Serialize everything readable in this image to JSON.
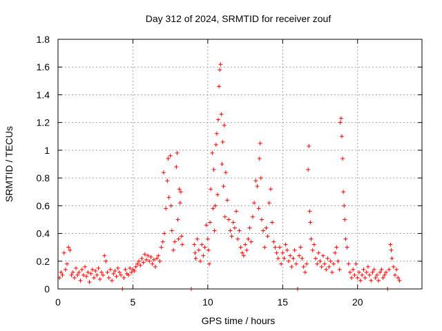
{
  "chart_data": {
    "type": "scatter",
    "title": "Day 312 of 2024, SRMTID for receiver zouf",
    "xlabel": "GPS time / hours",
    "ylabel": "SRMTID / TECUs",
    "xlim": [
      0,
      24.3
    ],
    "ylim": [
      0,
      1.8
    ],
    "xticks": [
      0,
      5,
      10,
      15,
      20
    ],
    "xtick_labels": [
      "0",
      "5",
      "10",
      "15",
      "20"
    ],
    "yticks": [
      0,
      0.2,
      0.4,
      0.6,
      0.8,
      1.0,
      1.2,
      1.4,
      1.6,
      1.8
    ],
    "ytick_labels": [
      "0",
      "0.2",
      "0.4",
      "0.6",
      "0.8",
      "1",
      "1.2",
      "1.4",
      "1.6",
      "1.8"
    ],
    "grid": true,
    "marker": "+",
    "color": "#ff0000",
    "series": [
      {
        "name": "SRMTID",
        "points": [
          [
            0.1,
            0.08
          ],
          [
            0.2,
            0.12
          ],
          [
            0.3,
            0.1
          ],
          [
            0.4,
            0.26
          ],
          [
            0.5,
            0.14
          ],
          [
            0.6,
            0.18
          ],
          [
            0.7,
            0.3
          ],
          [
            0.8,
            0.28
          ],
          [
            0.9,
            0.1
          ],
          [
            1.0,
            0.12
          ],
          [
            1.1,
            0.08
          ],
          [
            1.2,
            0.15
          ],
          [
            1.3,
            0.1
          ],
          [
            1.4,
            0.12
          ],
          [
            1.5,
            0.06
          ],
          [
            1.6,
            0.14
          ],
          [
            1.7,
            0.1
          ],
          [
            1.8,
            0.16
          ],
          [
            1.9,
            0.09
          ],
          [
            2.0,
            0.12
          ],
          [
            2.1,
            0.05
          ],
          [
            2.2,
            0.11
          ],
          [
            2.3,
            0.14
          ],
          [
            2.4,
            0.08
          ],
          [
            2.5,
            0.13
          ],
          [
            2.6,
            0.1
          ],
          [
            2.7,
            0.15
          ],
          [
            2.8,
            0.07
          ],
          [
            2.9,
            0.12
          ],
          [
            3.0,
            0.1
          ],
          [
            3.1,
            0.24
          ],
          [
            3.2,
            0.2
          ],
          [
            3.3,
            0.12
          ],
          [
            3.4,
            0.08
          ],
          [
            3.5,
            0.14
          ],
          [
            3.6,
            0.06
          ],
          [
            3.7,
            0.11
          ],
          [
            3.8,
            0.13
          ],
          [
            3.9,
            0.09
          ],
          [
            4.0,
            0.15
          ],
          [
            4.1,
            0.12
          ],
          [
            4.2,
            0.1
          ],
          [
            4.3,
            0.0
          ],
          [
            4.4,
            0.08
          ],
          [
            4.5,
            0.14
          ],
          [
            4.6,
            0.11
          ],
          [
            4.7,
            0.1
          ],
          [
            4.8,
            0.15
          ],
          [
            4.9,
            0.12
          ],
          [
            5.0,
            0.14
          ],
          [
            5.1,
            0.13
          ],
          [
            5.2,
            0.16
          ],
          [
            5.3,
            0.18
          ],
          [
            5.4,
            0.2
          ],
          [
            5.5,
            0.17
          ],
          [
            5.6,
            0.22
          ],
          [
            5.7,
            0.19
          ],
          [
            5.8,
            0.25
          ],
          [
            5.9,
            0.21
          ],
          [
            6.0,
            0.24
          ],
          [
            6.1,
            0.2
          ],
          [
            6.2,
            0.23
          ],
          [
            6.3,
            0.18
          ],
          [
            6.4,
            0.21
          ],
          [
            6.5,
            0.16
          ],
          [
            6.6,
            0.22
          ],
          [
            6.7,
            0.24
          ],
          [
            6.8,
            0.2
          ],
          [
            6.9,
            0.3
          ],
          [
            7.0,
            0.34
          ],
          [
            7.05,
            0.84
          ],
          [
            7.1,
            0.4
          ],
          [
            7.2,
            0.58
          ],
          [
            7.3,
            0.78
          ],
          [
            7.35,
            0.94
          ],
          [
            7.4,
            0.66
          ],
          [
            7.5,
            0.96
          ],
          [
            7.55,
            0.6
          ],
          [
            7.6,
            0.42
          ],
          [
            7.7,
            0.28
          ],
          [
            7.8,
            0.34
          ],
          [
            7.9,
            0.88
          ],
          [
            7.95,
            0.98
          ],
          [
            8.0,
            0.5
          ],
          [
            8.05,
            0.36
          ],
          [
            8.1,
            0.72
          ],
          [
            8.15,
            0.62
          ],
          [
            8.2,
            0.7
          ],
          [
            8.25,
            0.38
          ],
          [
            8.3,
            0.32
          ],
          [
            8.9,
            0.0
          ],
          [
            9.1,
            0.32
          ],
          [
            9.15,
            0.26
          ],
          [
            9.2,
            0.22
          ],
          [
            9.3,
            0.36
          ],
          [
            9.4,
            0.28
          ],
          [
            9.5,
            0.2
          ],
          [
            9.6,
            0.32
          ],
          [
            9.7,
            0.24
          ],
          [
            9.8,
            0.3
          ],
          [
            9.9,
            0.46
          ],
          [
            10.0,
            0.36
          ],
          [
            10.05,
            0.28
          ],
          [
            10.1,
            0.18
          ],
          [
            10.15,
            0.48
          ],
          [
            10.2,
            0.72
          ],
          [
            10.3,
            0.98
          ],
          [
            10.35,
            0.58
          ],
          [
            10.4,
            0.86
          ],
          [
            10.45,
            0.42
          ],
          [
            10.5,
            0.6
          ],
          [
            10.55,
            1.04
          ],
          [
            10.6,
            1.12
          ],
          [
            10.65,
            0.68
          ],
          [
            10.7,
            1.22
          ],
          [
            10.75,
            1.46
          ],
          [
            10.8,
            1.58
          ],
          [
            10.85,
            1.62
          ],
          [
            10.9,
            1.26
          ],
          [
            10.95,
            0.9
          ],
          [
            11.0,
            1.06
          ],
          [
            11.05,
            0.74
          ],
          [
            11.1,
            1.18
          ],
          [
            11.15,
            0.52
          ],
          [
            11.2,
            0.84
          ],
          [
            11.3,
            0.64
          ],
          [
            11.4,
            0.5
          ],
          [
            11.5,
            0.42
          ],
          [
            11.6,
            0.38
          ],
          [
            11.7,
            0.48
          ],
          [
            11.8,
            0.44
          ],
          [
            11.9,
            0.56
          ],
          [
            12.0,
            0.36
          ],
          [
            12.1,
            0.42
          ],
          [
            12.2,
            0.3
          ],
          [
            12.3,
            0.26
          ],
          [
            12.4,
            0.24
          ],
          [
            12.5,
            0.32
          ],
          [
            12.6,
            0.28
          ],
          [
            12.7,
            0.36
          ],
          [
            12.8,
            0.44
          ],
          [
            12.9,
            0.34
          ],
          [
            13.0,
            0.52
          ],
          [
            13.1,
            0.62
          ],
          [
            13.2,
            0.78
          ],
          [
            13.3,
            0.74
          ],
          [
            13.4,
            0.58
          ],
          [
            13.45,
            0.94
          ],
          [
            13.5,
            1.05
          ],
          [
            13.55,
            0.8
          ],
          [
            13.6,
            0.5
          ],
          [
            13.7,
            0.42
          ],
          [
            13.8,
            0.3
          ],
          [
            13.9,
            0.44
          ],
          [
            14.0,
            0.38
          ],
          [
            14.1,
            0.62
          ],
          [
            14.2,
            0.72
          ],
          [
            14.3,
            0.48
          ],
          [
            14.4,
            0.34
          ],
          [
            14.5,
            0.3
          ],
          [
            14.6,
            0.26
          ],
          [
            14.7,
            0.22
          ],
          [
            14.8,
            0.3
          ],
          [
            14.9,
            0.18
          ],
          [
            15.0,
            0.26
          ],
          [
            15.1,
            0.22
          ],
          [
            15.2,
            0.32
          ],
          [
            15.3,
            0.28
          ],
          [
            15.4,
            0.2
          ],
          [
            15.5,
            0.24
          ],
          [
            15.6,
            0.16
          ],
          [
            15.7,
            0.22
          ],
          [
            15.8,
            0.28
          ],
          [
            15.9,
            0.18
          ],
          [
            16.0,
            0.0
          ],
          [
            16.1,
            0.24
          ],
          [
            16.2,
            0.3
          ],
          [
            16.3,
            0.22
          ],
          [
            16.4,
            0.16
          ],
          [
            16.5,
            0.12
          ],
          [
            16.6,
            0.18
          ],
          [
            16.7,
            0.86
          ],
          [
            16.75,
            1.03
          ],
          [
            16.8,
            0.56
          ],
          [
            16.85,
            0.48
          ],
          [
            16.9,
            0.36
          ],
          [
            17.0,
            0.28
          ],
          [
            17.1,
            0.32
          ],
          [
            17.2,
            0.22
          ],
          [
            17.3,
            0.18
          ],
          [
            17.4,
            0.26
          ],
          [
            17.5,
            0.2
          ],
          [
            17.6,
            0.16
          ],
          [
            17.7,
            0.24
          ],
          [
            17.8,
            0.18
          ],
          [
            17.9,
            0.14
          ],
          [
            18.0,
            0.22
          ],
          [
            18.1,
            0.16
          ],
          [
            18.2,
            0.2
          ],
          [
            18.3,
            0.12
          ],
          [
            18.4,
            0.18
          ],
          [
            18.5,
            0.26
          ],
          [
            18.6,
            0.3
          ],
          [
            18.7,
            0.2
          ],
          [
            18.8,
            0.14
          ],
          [
            18.85,
            1.2
          ],
          [
            18.9,
            1.23
          ],
          [
            18.95,
            1.1
          ],
          [
            19.0,
            0.94
          ],
          [
            19.05,
            0.7
          ],
          [
            19.1,
            0.6
          ],
          [
            19.15,
            0.5
          ],
          [
            19.2,
            0.36
          ],
          [
            19.3,
            0.3
          ],
          [
            19.4,
            0.18
          ],
          [
            19.5,
            0.12
          ],
          [
            19.6,
            0.08
          ],
          [
            19.7,
            0.14
          ],
          [
            19.8,
            0.1
          ],
          [
            19.9,
            0.18
          ],
          [
            20.0,
            0.08
          ],
          [
            20.1,
            0.12
          ],
          [
            20.2,
            0.06
          ],
          [
            20.3,
            0.1
          ],
          [
            20.4,
            0.14
          ],
          [
            20.5,
            0.08
          ],
          [
            20.6,
            0.12
          ],
          [
            20.7,
            0.16
          ],
          [
            20.8,
            0.1
          ],
          [
            20.9,
            0.06
          ],
          [
            21.0,
            0.12
          ],
          [
            21.1,
            0.14
          ],
          [
            21.2,
            0.08
          ],
          [
            21.3,
            0.1
          ],
          [
            21.4,
            0.06
          ],
          [
            21.5,
            0.12
          ],
          [
            21.6,
            0.14
          ],
          [
            21.7,
            0.08
          ],
          [
            21.8,
            0.1
          ],
          [
            21.9,
            0.12
          ],
          [
            22.0,
            0.0
          ],
          [
            22.1,
            0.14
          ],
          [
            22.2,
            0.32
          ],
          [
            22.25,
            0.28
          ],
          [
            22.3,
            0.22
          ],
          [
            22.4,
            0.16
          ],
          [
            22.5,
            0.1
          ],
          [
            22.6,
            0.14
          ],
          [
            22.7,
            0.08
          ],
          [
            22.8,
            0.06
          ]
        ]
      }
    ]
  }
}
